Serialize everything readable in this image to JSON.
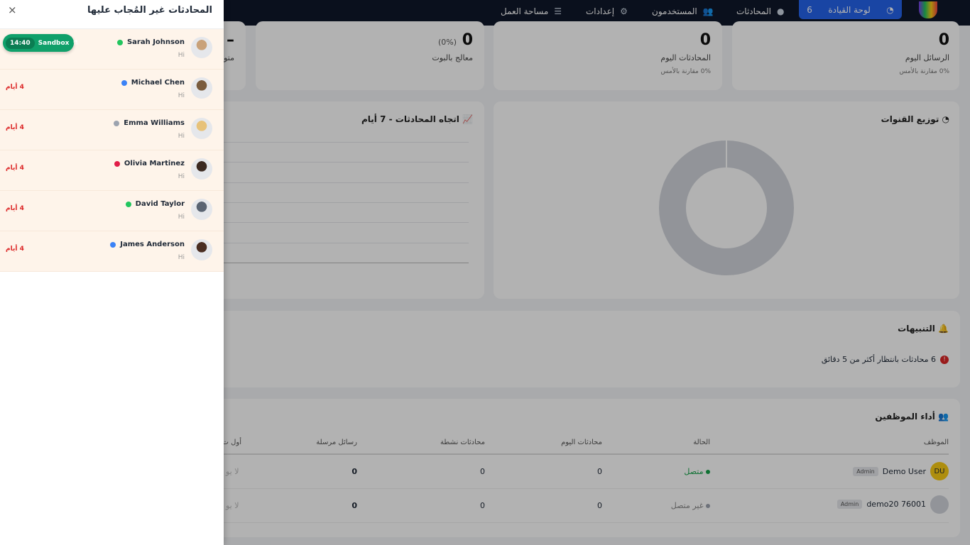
{
  "header": {
    "nav": [
      {
        "label": "لوحة القيادة",
        "badge": "6",
        "icon": "dashboard-icon"
      },
      {
        "label": "المحادثات",
        "icon": "chat-icon"
      },
      {
        "label": "المستخدمون",
        "icon": "users-icon"
      },
      {
        "label": "إعدادات",
        "icon": "gears-icon"
      },
      {
        "label": "مساحة العمل",
        "icon": "list-icon"
      }
    ]
  },
  "stats": [
    {
      "value": "0",
      "label": "الرسائل اليوم",
      "sub": "0% مقارنة بالأمس"
    },
    {
      "value": "0",
      "label": "المحادثات اليوم",
      "sub": "0% مقارنة بالأمس"
    },
    {
      "value": "0",
      "pct": "(0%)",
      "label": "معالج بالبوت"
    },
    {
      "value": "–",
      "label": "متو"
    }
  ],
  "channels": {
    "title": "توزيع القنوات",
    "donut_color": "#d1d5db"
  },
  "trend": {
    "title": "اتجاه المحادثات - 7 أيام"
  },
  "alerts": {
    "title": "التنبيهات",
    "message": "6 محادثات بانتظار أكثر من 5 دقائق"
  },
  "employees": {
    "title": "أداء الموظفين",
    "columns": [
      "الموظف",
      "الحالة",
      "محادثات اليوم",
      "محادثات نشطة",
      "رسائل مرسلة",
      "أول ت"
    ],
    "rows": [
      {
        "initials": "DU",
        "name": "Demo User",
        "role": "Admin",
        "status": "متصل",
        "status_color": "#16a34a",
        "today": "0",
        "active": "0",
        "sent": "0",
        "first": "لا يو"
      },
      {
        "initials": "",
        "name": "demo20 76001",
        "role": "Admin",
        "status": "غير متصل",
        "status_color": "#9ca3af",
        "today": "0",
        "active": "0",
        "sent": "0",
        "first": "لا يو"
      }
    ]
  },
  "drawer": {
    "title": "المحادثات غير المُجاب عليها",
    "close": "×",
    "sandbox": {
      "label": "Sandbox",
      "time": "14:40"
    },
    "items": [
      {
        "name": "Sarah Johnson",
        "msg": "Hi",
        "age": "",
        "dot": "#22c55e",
        "avatar": "#c9a27a"
      },
      {
        "name": "Michael Chen",
        "msg": "Hi",
        "age": "4 أيام",
        "dot": "#3b82f6",
        "avatar": "#7a5c3e"
      },
      {
        "name": "Emma Williams",
        "msg": "Hi",
        "age": "4 أيام",
        "dot": "#9ca3af",
        "avatar": "#e7c27a"
      },
      {
        "name": "Olivia Martinez",
        "msg": "Hi",
        "age": "4 أيام",
        "dot": "#e11d48",
        "avatar": "#3b2a22"
      },
      {
        "name": "David Taylor",
        "msg": "Hi",
        "age": "4 أيام",
        "dot": "#22c55e",
        "avatar": "#5a6472"
      },
      {
        "name": "James Anderson",
        "msg": "Hi",
        "age": "4 أيام",
        "dot": "#3b82f6",
        "avatar": "#4a2e22"
      }
    ]
  }
}
